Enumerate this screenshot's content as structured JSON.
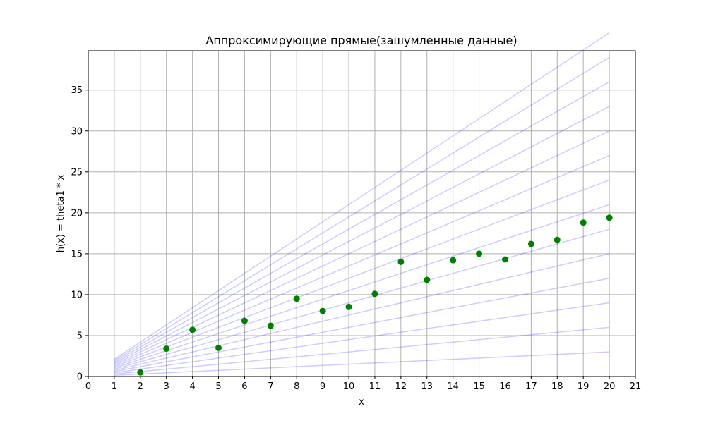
{
  "chart_data": {
    "type": "scatter",
    "title": "Аппроксимирующие прямые(зашумленные данные)",
    "xlabel": "x",
    "ylabel": "h(x) = theta1 * x",
    "xlim": [
      0,
      21
    ],
    "ylim": [
      0,
      39.8
    ],
    "x_ticks": [
      0,
      1,
      2,
      3,
      4,
      5,
      6,
      7,
      8,
      9,
      10,
      11,
      12,
      13,
      14,
      15,
      16,
      17,
      18,
      19,
      20,
      21
    ],
    "y_ticks": [
      0,
      5,
      10,
      15,
      20,
      25,
      30,
      35
    ],
    "grid": true,
    "colors": {
      "points": "#007f00",
      "lines": "#0000ff",
      "grid": "#b0b0b0"
    },
    "points": {
      "x": [
        2,
        3,
        4,
        5,
        6,
        7,
        8,
        9,
        10,
        11,
        12,
        13,
        14,
        15,
        16,
        17,
        18,
        19,
        20
      ],
      "y": [
        0.5,
        3.4,
        5.7,
        3.5,
        6.8,
        6.2,
        9.5,
        8.0,
        8.5,
        10.1,
        14.0,
        11.8,
        14.2,
        15.0,
        14.3,
        16.2,
        16.7,
        18.8,
        19.4
      ]
    },
    "lines": {
      "x_range": [
        1,
        20
      ],
      "theta1": [
        0.15,
        0.3,
        0.45,
        0.6,
        0.75,
        0.9,
        1.05,
        1.2,
        1.35,
        1.5,
        1.65,
        1.8,
        1.95,
        2.1
      ]
    }
  }
}
